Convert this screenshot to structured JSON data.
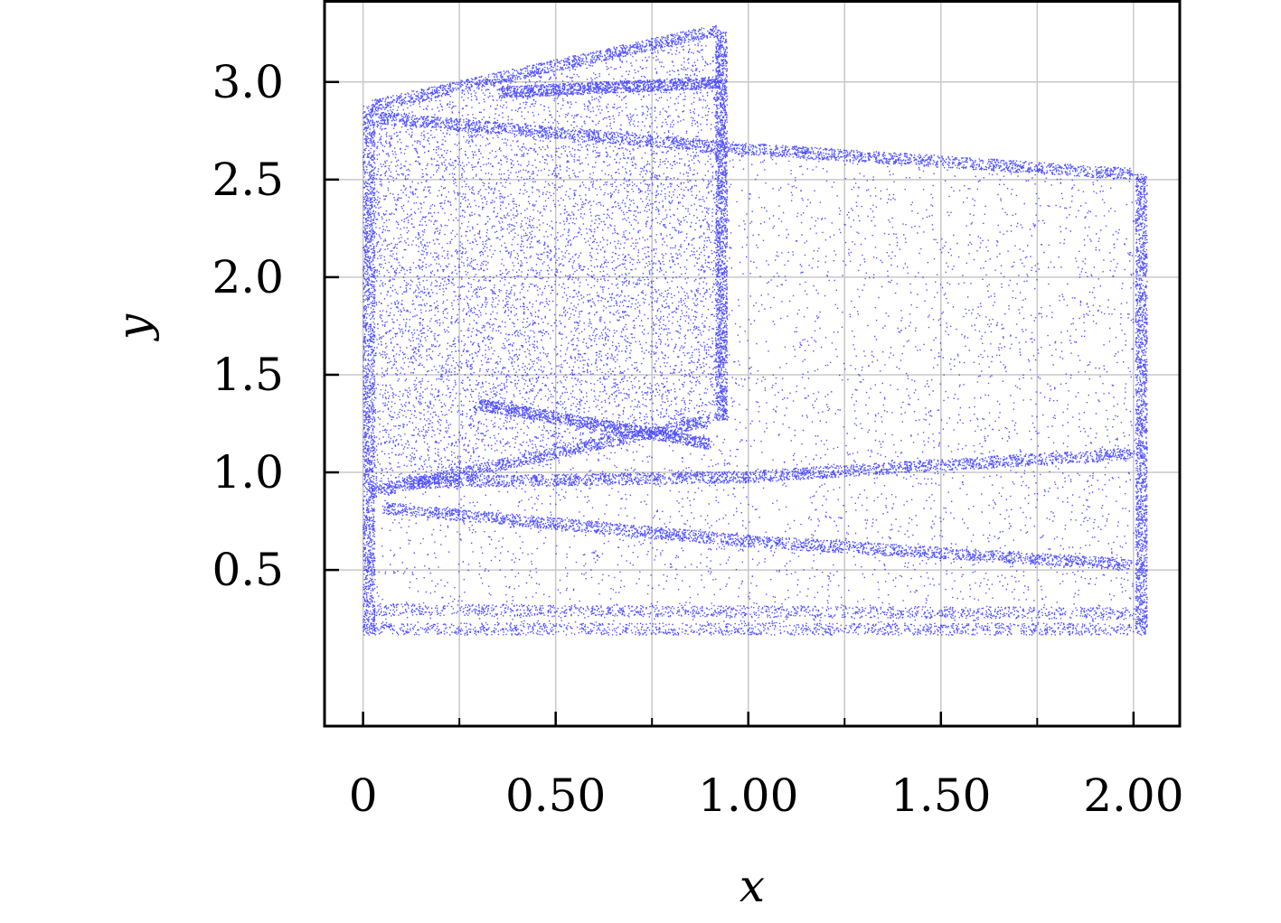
{
  "chart_data": {
    "type": "scatter",
    "title": "",
    "xlabel": "x",
    "ylabel": "y",
    "xlim": [
      -0.1,
      2.12
    ],
    "ylim": [
      -0.3,
      3.42
    ],
    "grid": true,
    "legend": "none",
    "x_ticks": [
      {
        "value": 0,
        "label": "0"
      },
      {
        "value": 0.5,
        "label": "0.50"
      },
      {
        "value": 1.0,
        "label": "1.00"
      },
      {
        "value": 1.5,
        "label": "1.50"
      },
      {
        "value": 2.0,
        "label": "2.00"
      }
    ],
    "x_minor_ticks": [
      0.25,
      0.75,
      1.25,
      1.75
    ],
    "y_ticks": [
      {
        "value": 0.5,
        "label": "0.5"
      },
      {
        "value": 1.0,
        "label": "1.0"
      },
      {
        "value": 1.5,
        "label": "1.5"
      },
      {
        "value": 2.0,
        "label": "2.0"
      },
      {
        "value": 2.5,
        "label": "2.5"
      },
      {
        "value": 3.0,
        "label": "3.0"
      }
    ],
    "series": [
      {
        "color": "#1a1aff",
        "regions": [
          {
            "x_range": [
              0.02,
              0.92
            ],
            "y_bottom": [
              0.9,
              1.27
            ],
            "y_top": [
              2.88,
              3.27
            ]
          },
          {
            "x_range": [
              0.0,
              2.01
            ],
            "y_bottom": [
              0.17,
              0.17
            ],
            "y_top": [
              2.82,
              2.53
            ]
          }
        ],
        "bands": [
          {
            "x": [
              0.02,
              0.92
            ],
            "y": [
              2.88,
              3.27
            ]
          },
          {
            "x": [
              0.02,
              0.9
            ],
            "y": [
              0.9,
              1.27
            ]
          },
          {
            "x": [
              0.03,
              1.0
            ],
            "y": [
              2.82,
              2.66
            ]
          },
          {
            "x": [
              1.0,
              2.0
            ],
            "y": [
              2.66,
              2.53
            ]
          },
          {
            "x": [
              0.05,
              1.0
            ],
            "y": [
              0.82,
              0.65
            ]
          },
          {
            "x": [
              1.0,
              2.0
            ],
            "y": [
              0.65,
              0.53
            ]
          },
          {
            "x": [
              0.1,
              1.0
            ],
            "y": [
              0.95,
              0.98
            ]
          },
          {
            "x": [
              1.0,
              2.0
            ],
            "y": [
              0.98,
              1.1
            ]
          },
          {
            "x": [
              0.02,
              2.0
            ],
            "y": [
              0.3,
              0.28
            ]
          },
          {
            "x": [
              0.02,
              2.0
            ],
            "y": [
              0.2,
              0.2
            ]
          },
          {
            "x": [
              0.3,
              0.9
            ],
            "y": [
              1.35,
              1.15
            ]
          },
          {
            "x": [
              0.35,
              0.92
            ],
            "y": [
              2.95,
              3.0
            ]
          }
        ],
        "edges": [
          {
            "x": [
              0.005,
              0.005
            ],
            "y": [
              0.17,
              2.88
            ]
          },
          {
            "x": [
              0.92,
              0.92
            ],
            "y": [
              1.27,
              3.27
            ]
          },
          {
            "x": [
              2.01,
              2.01
            ],
            "y": [
              0.17,
              2.53
            ]
          }
        ]
      }
    ]
  }
}
